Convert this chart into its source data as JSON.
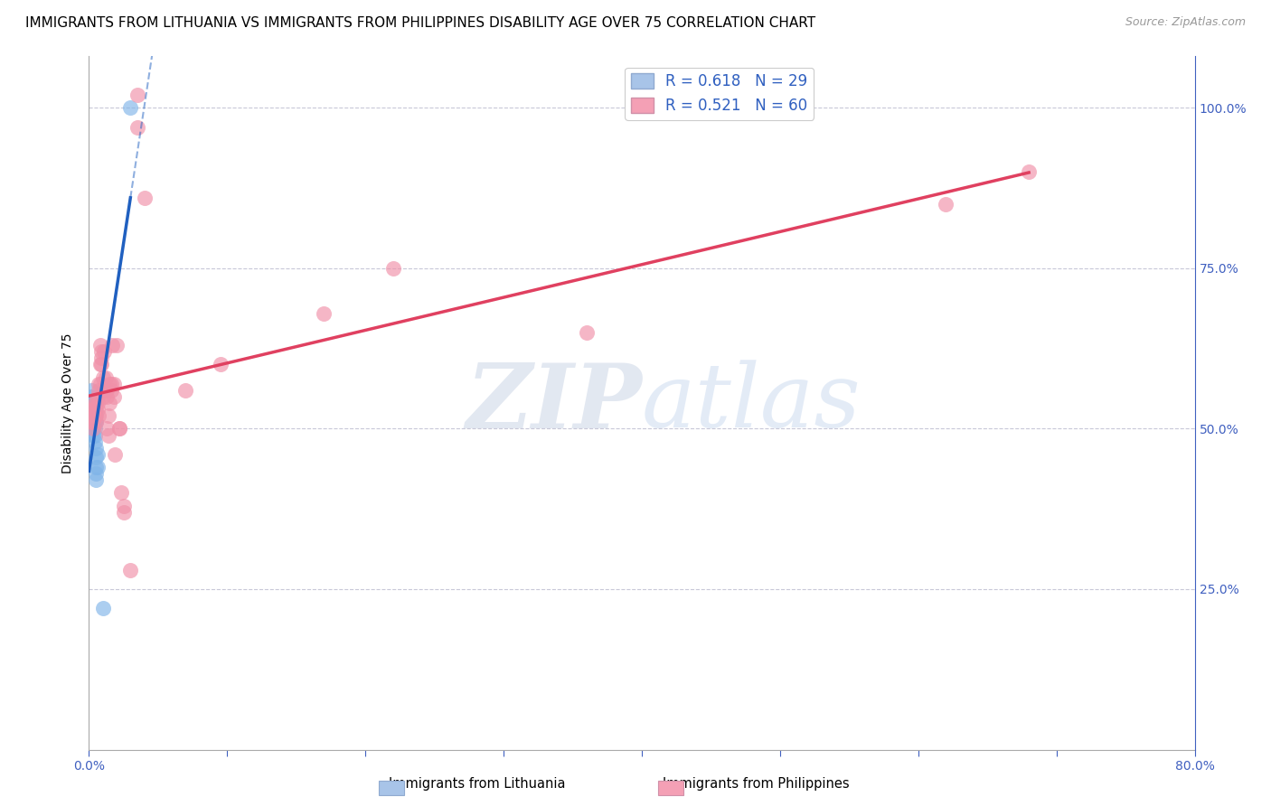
{
  "title": "IMMIGRANTS FROM LITHUANIA VS IMMIGRANTS FROM PHILIPPINES DISABILITY AGE OVER 75 CORRELATION CHART",
  "source": "Source: ZipAtlas.com",
  "ylabel": "Disability Age Over 75",
  "xlim": [
    0.0,
    0.8
  ],
  "ylim": [
    0.0,
    1.08
  ],
  "ytick_positions": [
    0.25,
    0.5,
    0.75,
    1.0
  ],
  "ytick_labels_right": [
    "25.0%",
    "50.0%",
    "75.0%",
    "100.0%"
  ],
  "xtick_positions": [
    0.0,
    0.1,
    0.2,
    0.3,
    0.4,
    0.5,
    0.6,
    0.7,
    0.8
  ],
  "watermark_zip": "ZIP",
  "watermark_atlas": "atlas",
  "legend_label_1": "R = 0.618   N = 29",
  "legend_label_2": "R = 0.521   N = 60",
  "legend_color_1": "#a8c4e8",
  "legend_color_2": "#f4a0b5",
  "bottom_label_1": "Immigrants from Lithuania",
  "bottom_label_2": "Immigrants from Philippines",
  "lithuania_color": "#80b4e8",
  "philippines_color": "#f090a8",
  "trend_color_1": "#2060c0",
  "trend_color_2": "#e04060",
  "background_color": "#ffffff",
  "grid_color": "#c8c8d8",
  "title_fontsize": 11,
  "axis_label_fontsize": 10,
  "tick_fontsize": 10,
  "legend_fontsize": 12,
  "lithuania_scatter": [
    [
      0.002,
      0.54
    ],
    [
      0.002,
      0.56
    ],
    [
      0.002,
      0.52
    ],
    [
      0.002,
      0.55
    ],
    [
      0.003,
      0.5
    ],
    [
      0.003,
      0.52
    ],
    [
      0.003,
      0.51
    ],
    [
      0.003,
      0.49
    ],
    [
      0.003,
      0.53
    ],
    [
      0.003,
      0.5
    ],
    [
      0.004,
      0.52
    ],
    [
      0.004,
      0.53
    ],
    [
      0.004,
      0.51
    ],
    [
      0.004,
      0.49
    ],
    [
      0.004,
      0.54
    ],
    [
      0.004,
      0.52
    ],
    [
      0.004,
      0.5
    ],
    [
      0.004,
      0.48
    ],
    [
      0.005,
      0.47
    ],
    [
      0.005,
      0.51
    ],
    [
      0.005,
      0.455
    ],
    [
      0.005,
      0.44
    ],
    [
      0.005,
      0.43
    ],
    [
      0.005,
      0.42
    ],
    [
      0.006,
      0.46
    ],
    [
      0.006,
      0.44
    ],
    [
      0.01,
      0.22
    ],
    [
      0.03,
      1.0
    ],
    [
      0.01,
      0.56
    ]
  ],
  "philippines_scatter": [
    [
      0.002,
      0.52
    ],
    [
      0.002,
      0.51
    ],
    [
      0.003,
      0.5
    ],
    [
      0.003,
      0.53
    ],
    [
      0.003,
      0.51
    ],
    [
      0.003,
      0.53
    ],
    [
      0.004,
      0.54
    ],
    [
      0.004,
      0.52
    ],
    [
      0.004,
      0.52
    ],
    [
      0.005,
      0.53
    ],
    [
      0.005,
      0.54
    ],
    [
      0.005,
      0.52
    ],
    [
      0.005,
      0.51
    ],
    [
      0.006,
      0.55
    ],
    [
      0.006,
      0.54
    ],
    [
      0.006,
      0.53
    ],
    [
      0.007,
      0.52
    ],
    [
      0.007,
      0.57
    ],
    [
      0.007,
      0.56
    ],
    [
      0.008,
      0.63
    ],
    [
      0.008,
      0.6
    ],
    [
      0.008,
      0.57
    ],
    [
      0.009,
      0.6
    ],
    [
      0.009,
      0.62
    ],
    [
      0.009,
      0.61
    ],
    [
      0.01,
      0.58
    ],
    [
      0.01,
      0.55
    ],
    [
      0.011,
      0.62
    ],
    [
      0.012,
      0.56
    ],
    [
      0.012,
      0.58
    ],
    [
      0.013,
      0.5
    ],
    [
      0.013,
      0.55
    ],
    [
      0.013,
      0.56
    ],
    [
      0.014,
      0.52
    ],
    [
      0.014,
      0.49
    ],
    [
      0.015,
      0.57
    ],
    [
      0.015,
      0.54
    ],
    [
      0.016,
      0.56
    ],
    [
      0.016,
      0.57
    ],
    [
      0.017,
      0.63
    ],
    [
      0.018,
      0.57
    ],
    [
      0.018,
      0.55
    ],
    [
      0.019,
      0.46
    ],
    [
      0.02,
      0.63
    ],
    [
      0.022,
      0.5
    ],
    [
      0.022,
      0.5
    ],
    [
      0.023,
      0.4
    ],
    [
      0.025,
      0.38
    ],
    [
      0.025,
      0.37
    ],
    [
      0.03,
      0.28
    ],
    [
      0.035,
      1.02
    ],
    [
      0.035,
      0.97
    ],
    [
      0.04,
      0.86
    ],
    [
      0.07,
      0.56
    ],
    [
      0.095,
      0.6
    ],
    [
      0.17,
      0.68
    ],
    [
      0.22,
      0.75
    ],
    [
      0.36,
      0.65
    ],
    [
      0.62,
      0.85
    ],
    [
      0.68,
      0.9
    ]
  ]
}
